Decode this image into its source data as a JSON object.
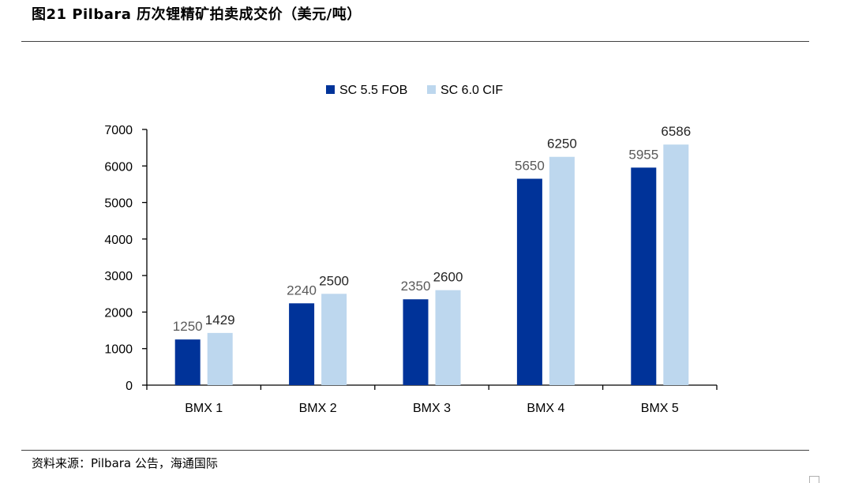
{
  "figure": {
    "title": "图21 Pilbara 历次锂精矿拍卖成交价（美元/吨）",
    "source": "资料来源：Pilbara 公告，海通国际"
  },
  "chart_data": {
    "type": "bar",
    "title": "",
    "xlabel": "",
    "ylabel": "",
    "categories": [
      "BMX 1",
      "BMX 2",
      "BMX 3",
      "BMX 4",
      "BMX 5"
    ],
    "series": [
      {
        "name": "SC 5.5 FOB",
        "color": "#003399",
        "values": [
          1250,
          2240,
          2350,
          5650,
          5955
        ],
        "label_color": "#595959"
      },
      {
        "name": "SC 6.0 CIF",
        "color": "#bdd7ee",
        "values": [
          1429,
          2500,
          2600,
          6250,
          6586
        ],
        "label_color": "#262626"
      }
    ],
    "ylim": [
      0,
      7000
    ],
    "yticks": [
      "0",
      "1000",
      "2000",
      "3000",
      "4000",
      "5000",
      "6000",
      "7000"
    ],
    "grid": false,
    "legend": "top-center"
  }
}
